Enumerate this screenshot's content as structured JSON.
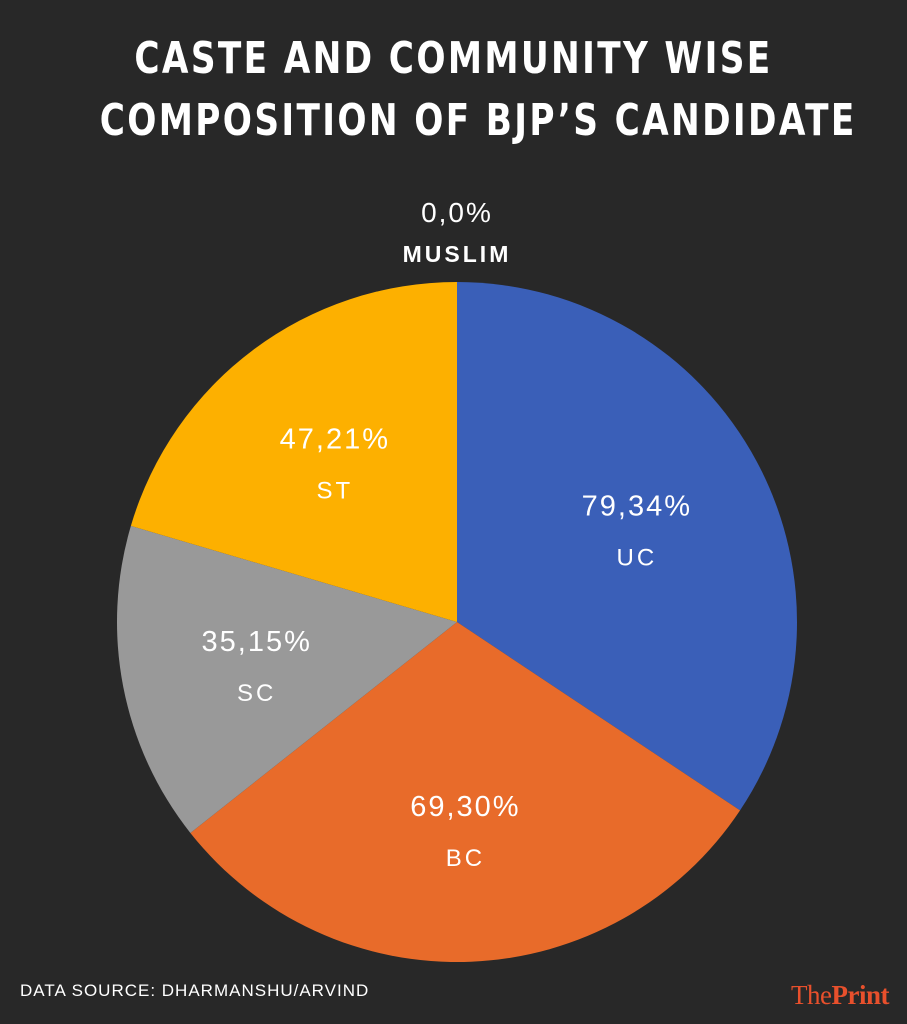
{
  "title_lines": [
    "CASTE AND COMMUNITY WISE",
    "COMPOSITION OF BJP’S CANDIDATE"
  ],
  "footer": {
    "source": "DATA SOURCE: DHARMANSHU/ARVIND",
    "logo_the": "The",
    "logo_print": "Print"
  },
  "chart_data": {
    "type": "pie",
    "title": "CASTE AND COMMUNITY WISE COMPOSITION OF BJP’S CANDIDATE",
    "slices": [
      {
        "label": "MUSLIM",
        "value_label": "0,0%",
        "value": 0,
        "color": "#ffffff"
      },
      {
        "label": "UC",
        "value_label": "79,34%",
        "value": 79.34,
        "color": "#3a5fb8"
      },
      {
        "label": "BC",
        "value_label": "69,30%",
        "value": 69.3,
        "color": "#e86b2a"
      },
      {
        "label": "SC",
        "value_label": "35,15%",
        "value": 35.15,
        "color": "#999999"
      },
      {
        "label": "ST",
        "value_label": "47,21%",
        "value": 47.21,
        "color": "#fdb000"
      }
    ]
  }
}
